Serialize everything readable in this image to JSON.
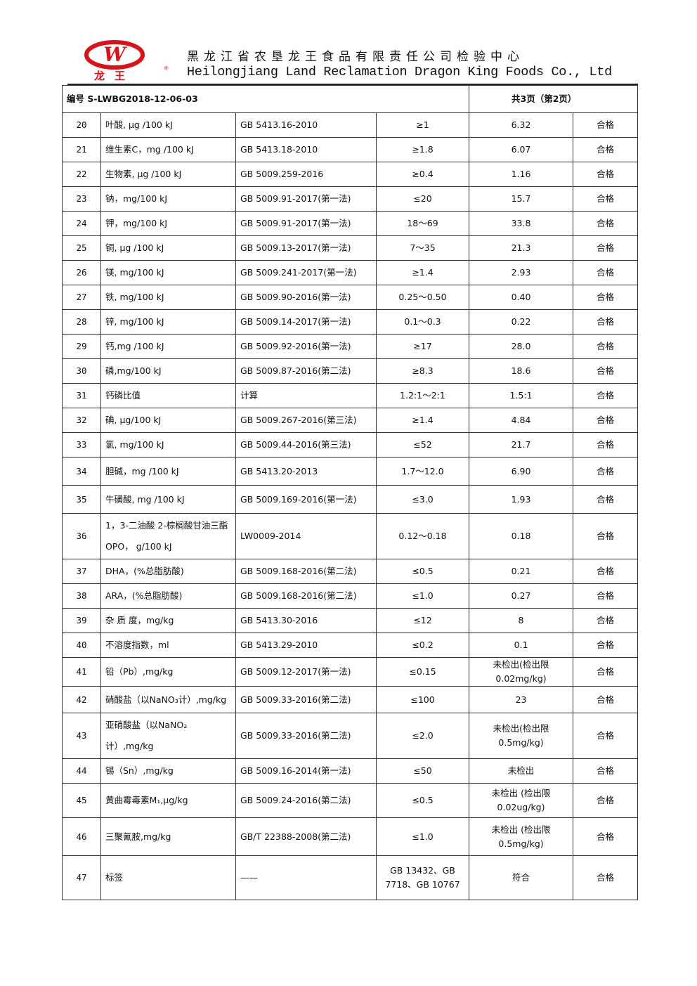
{
  "header": {
    "logo": {
      "text": "龙 王",
      "mark": "W",
      "registered": "®",
      "colors": {
        "red": "#d7141c"
      }
    },
    "company_cn": "黑龙江省农垦龙王食品有限责任公司检验中心",
    "company_en": "Heilongjiang Land Reclamation Dragon King Foods Co., Ltd"
  },
  "report": {
    "number": "编号 S-LWBG2018-12-06-03",
    "pages": "共3页（第2页）"
  },
  "rows": [
    {
      "no": "20",
      "item": "叶酸, μg /100 kJ",
      "method": "GB 5413.16-2010",
      "limit": "≥1",
      "result": "6.32",
      "verdict": "合格"
    },
    {
      "no": "21",
      "item": "维生素C，mg /100 kJ",
      "method": "GB 5413.18-2010",
      "limit": "≥1.8",
      "result": "6.07",
      "verdict": "合格"
    },
    {
      "no": "22",
      "item": "生物素, μg /100 kJ",
      "method": "GB 5009.259-2016",
      "limit": "≥0.4",
      "result": "1.16",
      "verdict": "合格"
    },
    {
      "no": "23",
      "item": "钠，mg/100 kJ",
      "method": "GB 5009.91-2017(第一法)",
      "limit": "≤20",
      "result": "15.7",
      "verdict": "合格"
    },
    {
      "no": "24",
      "item": "钾，mg/100 kJ",
      "method": "GB 5009.91-2017(第一法)",
      "limit": "18～69",
      "result": "33.8",
      "verdict": "合格"
    },
    {
      "no": "25",
      "item": "铜, μg /100 kJ",
      "method": "GB 5009.13-2017(第一法)",
      "limit": "7～35",
      "result": "21.3",
      "verdict": "合格"
    },
    {
      "no": "26",
      "item": "镁, mg/100 kJ",
      "method": "GB 5009.241-2017(第一法)",
      "limit": "≥1.4",
      "result": "2.93",
      "verdict": "合格"
    },
    {
      "no": "27",
      "item": "铁, mg/100 kJ",
      "method": "GB 5009.90-2016(第一法)",
      "limit": "0.25～0.50",
      "result": "0.40",
      "verdict": "合格"
    },
    {
      "no": "28",
      "item": "锌, mg/100 kJ",
      "method": "GB 5009.14-2017(第一法)",
      "limit": "0.1～0.3",
      "result": "0.22",
      "verdict": "合格"
    },
    {
      "no": "29",
      "item": "钙,mg /100 kJ",
      "method": "GB 5009.92-2016(第一法)",
      "limit": "≥17",
      "result": "28.0",
      "verdict": "合格"
    },
    {
      "no": "30",
      "item": "磷,mg/100 kJ",
      "method": "GB 5009.87-2016(第二法)",
      "limit": "≥8.3",
      "result": "18.6",
      "verdict": "合格"
    },
    {
      "no": "31",
      "item": "钙磷比值",
      "method": "计算",
      "limit": "1.2:1～2:1",
      "result": "1.5:1",
      "verdict": "合格"
    },
    {
      "no": "32",
      "item": "碘, μg/100 kJ",
      "method": "GB 5009.267-2016(第三法)",
      "limit": "≥1.4",
      "result": "4.84",
      "verdict": "合格"
    },
    {
      "no": "33",
      "item": "氯, mg/100 kJ",
      "method": "GB 5009.44-2016(第三法)",
      "limit": "≤52",
      "result": "21.7",
      "verdict": "合格"
    },
    {
      "no": "34",
      "item": "胆碱，mg /100 kJ",
      "method": "GB 5413.20-2013",
      "limit": "1.7～12.0",
      "result": "6.90",
      "verdict": "合格"
    },
    {
      "no": "35",
      "item": "牛磺酸, mg /100 kJ",
      "method": "GB 5009.169-2016(第一法)",
      "limit": "≤3.0",
      "result": "1.93",
      "verdict": "合格"
    },
    {
      "no": "36",
      "item": "1，3-二油酸 2-棕榈酸甘油三酯 OPO， g/100 kJ",
      "method": "LW0009-2014",
      "limit": "0.12～0.18",
      "result": "0.18",
      "verdict": "合格"
    },
    {
      "no": "37",
      "item": "DHA，(%总脂肪酸)",
      "method": "GB 5009.168-2016(第二法)",
      "limit": "≤0.5",
      "result": "0.21",
      "verdict": "合格"
    },
    {
      "no": "38",
      "item": "ARA，(%总脂肪酸)",
      "method": "GB 5009.168-2016(第二法)",
      "limit": "≤1.0",
      "result": "0.27",
      "verdict": "合格"
    },
    {
      "no": "39",
      "item": "杂 质 度，mg/kg",
      "method": "GB 5413.30-2016",
      "limit": "≤12",
      "result": "8",
      "verdict": "合格"
    },
    {
      "no": "40",
      "item": "不溶度指数，ml",
      "method": "GB 5413.29-2010",
      "limit": "≤0.2",
      "result": "0.1",
      "verdict": "合格"
    },
    {
      "no": "41",
      "item": "铅（Pb）,mg/kg",
      "method": "GB 5009.12-2017(第一法)",
      "limit": "≤0.15",
      "result": "未检出(检出限 0.02mg/kg)",
      "verdict": "合格"
    },
    {
      "no": "42",
      "item": "硝酸盐（以NaNO₃计）,mg/kg",
      "method": "GB 5009.33-2016(第二法)",
      "limit": "≤100",
      "result": "23",
      "verdict": "合格"
    },
    {
      "no": "43",
      "item": "亚硝酸盐（以NaNO₂计）,mg/kg",
      "method": "GB 5009.33-2016(第二法)",
      "limit": "≤2.0",
      "result": "未检出(检出限 0.5mg/kg)",
      "verdict": "合格"
    },
    {
      "no": "44",
      "item": "锡（Sn）,mg/kg",
      "method": "GB 5009.16-2014(第一法)",
      "limit": "≤50",
      "result": "未检出",
      "verdict": "合格"
    },
    {
      "no": "45",
      "item": "黄曲霉毒素M₁,μg/kg",
      "method": "GB 5009.24-2016(第二法)",
      "limit": "≤0.5",
      "result": "未检出 (检出限 0.02ug/kg)",
      "verdict": "合格"
    },
    {
      "no": "46",
      "item": "三聚氰胺,mg/kg",
      "method": "GB/T 22388-2008(第二法)",
      "limit": "≤1.0",
      "result": "未检出 (检出限 0.5mg/kg)",
      "verdict": "合格"
    },
    {
      "no": "47",
      "item": "标签",
      "method": "——",
      "limit": "GB 13432、GB 7718、GB 10767",
      "result": "符合",
      "verdict": "合格"
    }
  ]
}
